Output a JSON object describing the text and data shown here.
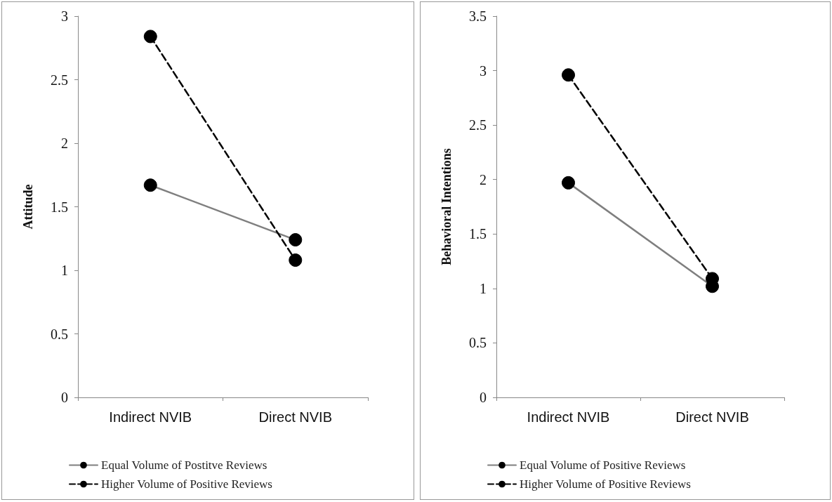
{
  "chart_data": [
    {
      "type": "line",
      "ylabel": "Attitude",
      "categories": [
        "Indirect NVIB",
        "Direct NVIB"
      ],
      "ylim": [
        0,
        3
      ],
      "yticks": [
        0,
        0.5,
        1,
        1.5,
        2,
        2.5,
        3
      ],
      "legend": "bottom",
      "marker": "circle",
      "grid": false,
      "series": [
        {
          "name": "Equal Volume of Postitve Reviews",
          "color": "#7f7f7f",
          "line_style": "solid",
          "values": [
            1.67,
            1.24
          ]
        },
        {
          "name": "Higher Volume of Positive Reviews",
          "color": "#000000",
          "line_style": "dashed",
          "values": [
            2.84,
            1.08
          ]
        }
      ]
    },
    {
      "type": "line",
      "ylabel": "Behavioral Intentions",
      "categories": [
        "Indirect NVIB",
        "Direct NVIB"
      ],
      "ylim": [
        0,
        3.5
      ],
      "yticks": [
        0,
        0.5,
        1,
        1.5,
        2,
        2.5,
        3,
        3.5
      ],
      "legend": "bottom",
      "marker": "circle",
      "grid": false,
      "series": [
        {
          "name": "Equal Volume of Positive Reviews",
          "color": "#7f7f7f",
          "line_style": "solid",
          "values": [
            1.97,
            1.02
          ]
        },
        {
          "name": "Higher Volume of Positive Reviews",
          "color": "#000000",
          "line_style": "dashed",
          "values": [
            2.96,
            1.09
          ]
        }
      ]
    }
  ]
}
